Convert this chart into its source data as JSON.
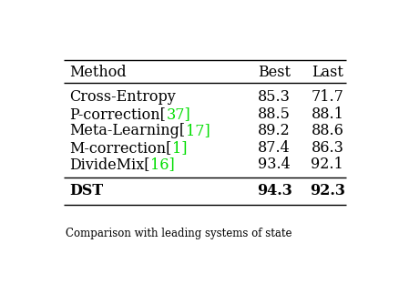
{
  "columns": [
    "Method",
    "Best",
    "Last"
  ],
  "rows": [
    {
      "method": "Cross-Entropy",
      "prefix": "Cross-Entropy",
      "ref": "",
      "best": "85.3",
      "last": "71.7",
      "bold": false
    },
    {
      "method": "P-correction[37]",
      "prefix": "P-correction[",
      "ref": "37]",
      "best": "88.5",
      "last": "88.1",
      "bold": false
    },
    {
      "method": "Meta-Learning[17]",
      "prefix": "Meta-Learning[",
      "ref": "17]",
      "best": "89.2",
      "last": "88.6",
      "bold": false
    },
    {
      "method": "M-correction[1]",
      "prefix": "M-correction[",
      "ref": "1]",
      "best": "87.4",
      "last": "86.3",
      "bold": false
    },
    {
      "method": "DivideMix[16]",
      "prefix": "DivideMix[",
      "ref": "16]",
      "best": "93.4",
      "last": "92.1",
      "bold": false
    },
    {
      "method": "DST",
      "prefix": "DST",
      "ref": "",
      "best": "94.3",
      "last": "92.3",
      "bold": true
    }
  ],
  "caption": "Comparison with leading systems of state",
  "bg_color": "#ffffff",
  "green_color": "#00dd00",
  "font_size": 11.5,
  "font_family": "DejaVu Serif"
}
